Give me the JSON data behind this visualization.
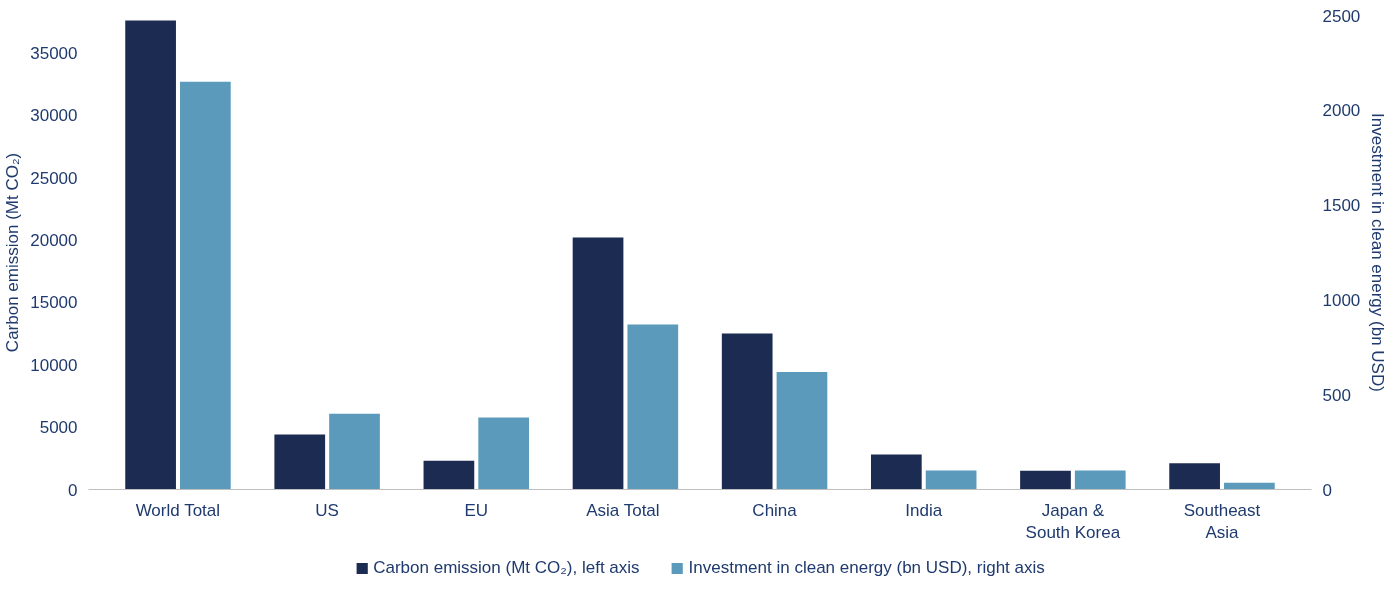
{
  "chart_data": {
    "type": "bar",
    "categories": [
      "World Total",
      "US",
      "EU",
      "Asia  Total",
      "China",
      "India",
      "Japan &\nSouth Korea",
      "Southeast\nAsia"
    ],
    "series": [
      {
        "name": "Carbon emission (Mt CO₂), left axis",
        "color": "#1c2b52",
        "values": [
          37600,
          4400,
          2300,
          20200,
          12500,
          2800,
          1500,
          2100
        ]
      },
      {
        "name": "Investment in clean energy (bn USD), right axis",
        "color": "#5b9aba",
        "axis": "y2",
        "values": [
          2150,
          400,
          380,
          870,
          620,
          100,
          100,
          35
        ]
      }
    ],
    "ylabel": "Carbon emission (Mt CO₂)",
    "y2label": "Investment in clean energy (bn USD)",
    "ylim": [
      0,
      38000
    ],
    "yticks": [
      0,
      5000,
      10000,
      15000,
      20000,
      25000,
      30000,
      35000
    ],
    "y2lim": [
      0,
      2500
    ],
    "y2ticks": [
      0,
      500,
      1000,
      1500,
      2000,
      2500
    ],
    "grid": false,
    "legend": "bottom"
  }
}
